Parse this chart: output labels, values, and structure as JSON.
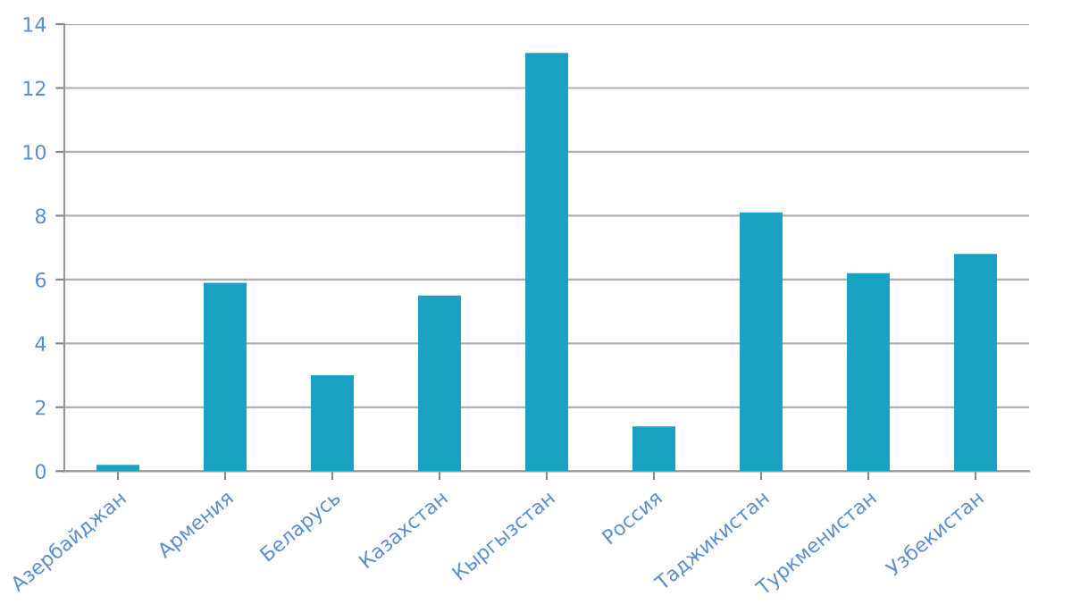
{
  "chart_data": {
    "type": "bar",
    "categories": [
      "Азербайджан",
      "Армения",
      "Беларусь",
      "Казахстан",
      "Кыргызстан",
      "Россия",
      "Таджикистан",
      "Туркменистан",
      "Узбекистан"
    ],
    "values": [
      0.2,
      5.9,
      3.0,
      5.5,
      13.1,
      1.4,
      8.1,
      6.2,
      6.8
    ],
    "color": "#1aa3c0",
    "ylim": [
      0,
      14
    ],
    "yticks": [
      0,
      2,
      4,
      6,
      8,
      10,
      12,
      14
    ],
    "grid": "y"
  }
}
